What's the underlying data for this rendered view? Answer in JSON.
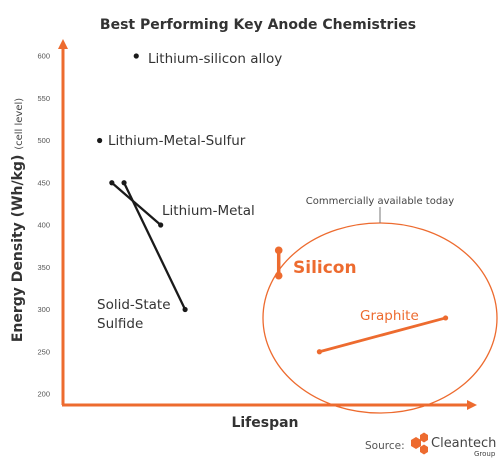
{
  "chart_data": {
    "type": "scatter",
    "title": "Best Performing Key Anode Chemistries",
    "xlabel": "Lifespan",
    "ylabel": "Energy Density (Wh/kg)",
    "ylabel_sub": "(cell level)",
    "ylim": [
      200,
      600
    ],
    "yticks": [
      "200",
      "250",
      "300",
      "350",
      "400",
      "450",
      "500",
      "550",
      "600"
    ],
    "xlim": [
      0,
      10
    ],
    "grid": false,
    "colors": {
      "axis": "#ed6b2f",
      "dark": "#1a1a1a",
      "highlight": "#ed6b2f"
    },
    "series": [
      {
        "name": "Lithium-silicon alloy",
        "kind": "point",
        "points": [
          {
            "x": 1.8,
            "y": 600
          }
        ]
      },
      {
        "name": "Lithium-Metal-Sulfur",
        "kind": "point",
        "points": [
          {
            "x": 0.9,
            "y": 500
          }
        ]
      },
      {
        "name": "Lithium-Metal",
        "kind": "segment",
        "points": [
          {
            "x": 1.2,
            "y": 450
          },
          {
            "x": 2.4,
            "y": 400
          }
        ]
      },
      {
        "name": "Solid-State Sulfide",
        "kind": "segment",
        "points": [
          {
            "x": 1.5,
            "y": 450
          },
          {
            "x": 3.0,
            "y": 300
          }
        ]
      },
      {
        "name": "Silicon",
        "kind": "segment",
        "points": [
          {
            "x": 5.3,
            "y": 370
          },
          {
            "x": 5.3,
            "y": 340
          }
        ]
      },
      {
        "name": "Graphite",
        "kind": "segment",
        "points": [
          {
            "x": 6.3,
            "y": 250
          },
          {
            "x": 9.4,
            "y": 290
          }
        ]
      }
    ],
    "annotations": {
      "region": "Commercially available today"
    },
    "source_label": "Source:",
    "brand_name": "Cleantech",
    "brand_sub": "Group"
  }
}
